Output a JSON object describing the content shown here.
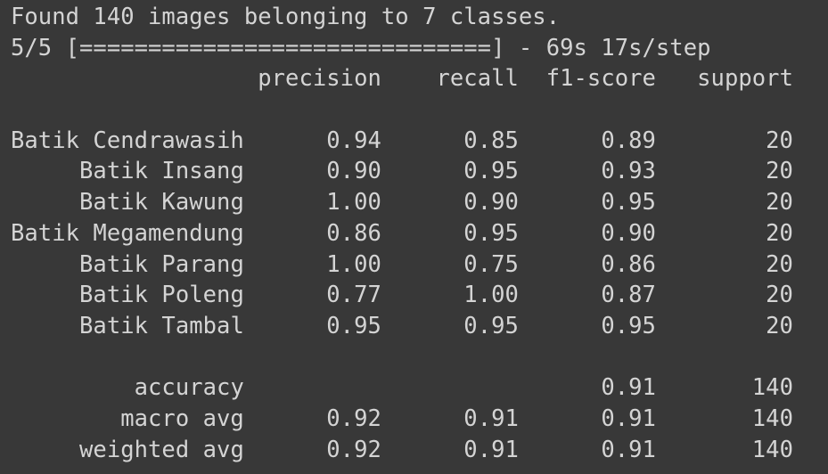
{
  "output": {
    "header_lines": [
      "Found 140 images belonging to 7 classes.",
      "5/5 [==============================] - 69s 17s/step"
    ],
    "report": {
      "columns": [
        "precision",
        "recall",
        "f1-score",
        "support"
      ],
      "classes": [
        {
          "label": "Batik Cendrawasih",
          "precision": "0.94",
          "recall": "0.85",
          "f1": "0.89",
          "support": "20"
        },
        {
          "label": "Batik Insang",
          "precision": "0.90",
          "recall": "0.95",
          "f1": "0.93",
          "support": "20"
        },
        {
          "label": "Batik Kawung",
          "precision": "1.00",
          "recall": "0.90",
          "f1": "0.95",
          "support": "20"
        },
        {
          "label": "Batik Megamendung",
          "precision": "0.86",
          "recall": "0.95",
          "f1": "0.90",
          "support": "20"
        },
        {
          "label": "Batik Parang",
          "precision": "1.00",
          "recall": "0.75",
          "f1": "0.86",
          "support": "20"
        },
        {
          "label": "Batik Poleng",
          "precision": "0.77",
          "recall": "1.00",
          "f1": "0.87",
          "support": "20"
        },
        {
          "label": "Batik Tambal",
          "precision": "0.95",
          "recall": "0.95",
          "f1": "0.95",
          "support": "20"
        }
      ],
      "summary": [
        {
          "label": "accuracy",
          "precision": "",
          "recall": "",
          "f1": "0.91",
          "support": "140"
        },
        {
          "label": "macro avg",
          "precision": "0.92",
          "recall": "0.91",
          "f1": "0.91",
          "support": "140"
        },
        {
          "label": "weighted avg",
          "precision": "0.92",
          "recall": "0.91",
          "f1": "0.91",
          "support": "140"
        }
      ]
    }
  },
  "colors": {
    "background": "#383838",
    "text": "#d4d4d4"
  }
}
